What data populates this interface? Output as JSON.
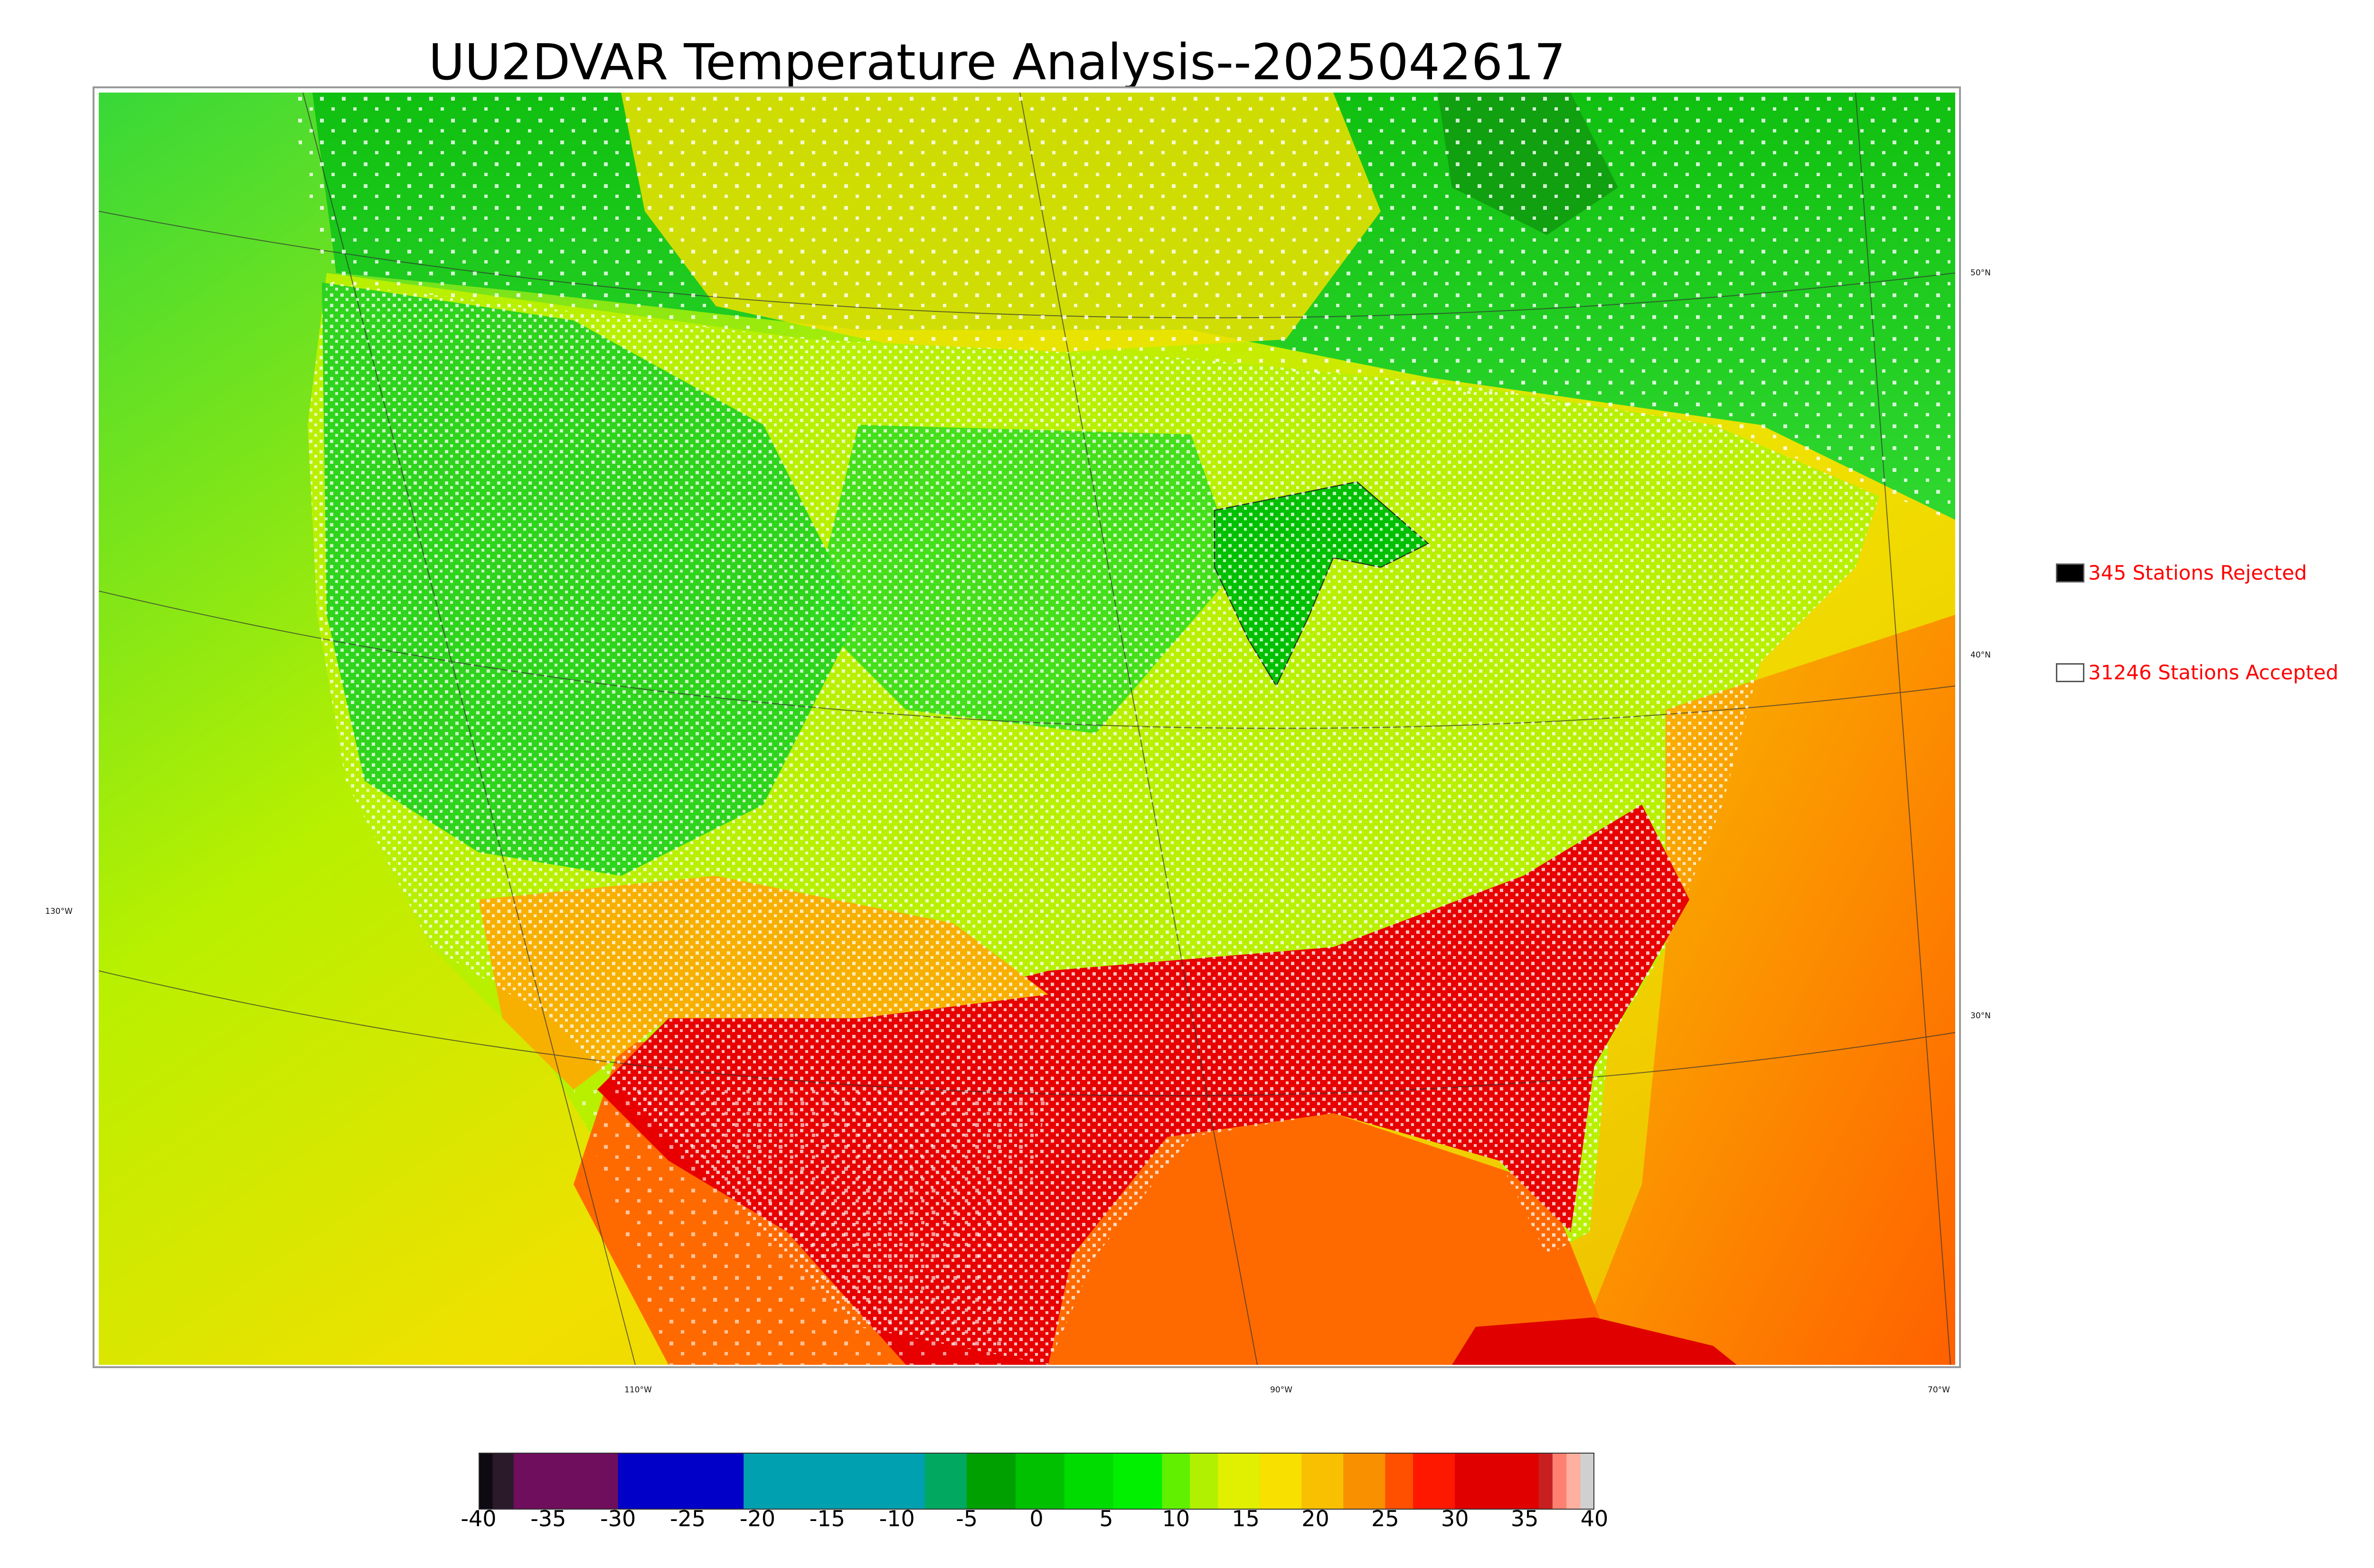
{
  "title": "UU2DVAR Temperature Analysis--2025042617",
  "legend": {
    "rejected": {
      "label": "345 Stations Rejected",
      "swatch_color": "#000000"
    },
    "accepted": {
      "label": "31246 Stations Accepted",
      "swatch_color": "#ffffff"
    }
  },
  "graticule": {
    "lat_labels": [
      "50°N",
      "40°N",
      "30°N"
    ],
    "lon_labels": [
      "130°W",
      "110°W",
      "90°W",
      "70°W"
    ]
  },
  "colorbar": {
    "ticks": [
      "-40",
      "-35",
      "-30",
      "-25",
      "-20",
      "-15",
      "-10",
      "-5",
      "0",
      "5",
      "10",
      "15",
      "20",
      "25",
      "30",
      "35",
      "40"
    ],
    "range": [
      -40,
      40
    ],
    "segments": [
      {
        "from": -40,
        "to": -39,
        "color": "#0d0a12"
      },
      {
        "from": -39,
        "to": -37.5,
        "color": "#2a1a2a"
      },
      {
        "from": -37.5,
        "to": -30,
        "color": "#6e0e5c"
      },
      {
        "from": -30,
        "to": -21,
        "color": "#0000c8"
      },
      {
        "from": -21,
        "to": -8,
        "color": "#00a0b0"
      },
      {
        "from": -8,
        "to": -5,
        "color": "#00a860"
      },
      {
        "from": -5,
        "to": -1.5,
        "color": "#00a000"
      },
      {
        "from": -1.5,
        "to": 2,
        "color": "#00c000"
      },
      {
        "from": 2,
        "to": 5.5,
        "color": "#00dc00"
      },
      {
        "from": 5.5,
        "to": 9,
        "color": "#00f000"
      },
      {
        "from": 9,
        "to": 11,
        "color": "#60f000"
      },
      {
        "from": 11,
        "to": 13,
        "color": "#b0f000"
      },
      {
        "from": 13,
        "to": 16,
        "color": "#e0f000"
      },
      {
        "from": 16,
        "to": 19,
        "color": "#f8e000"
      },
      {
        "from": 19,
        "to": 22,
        "color": "#f8c000"
      },
      {
        "from": 22,
        "to": 25,
        "color": "#f89000"
      },
      {
        "from": 25,
        "to": 27,
        "color": "#ff5000"
      },
      {
        "from": 27,
        "to": 30,
        "color": "#ff1800"
      },
      {
        "from": 30,
        "to": 36,
        "color": "#e00000"
      },
      {
        "from": 36,
        "to": 37,
        "color": "#c82020"
      },
      {
        "from": 37,
        "to": 38,
        "color": "#ff8070"
      },
      {
        "from": 38,
        "to": 39,
        "color": "#ffb0a0"
      },
      {
        "from": 39,
        "to": 40,
        "color": "#d0d0d0"
      }
    ]
  }
}
